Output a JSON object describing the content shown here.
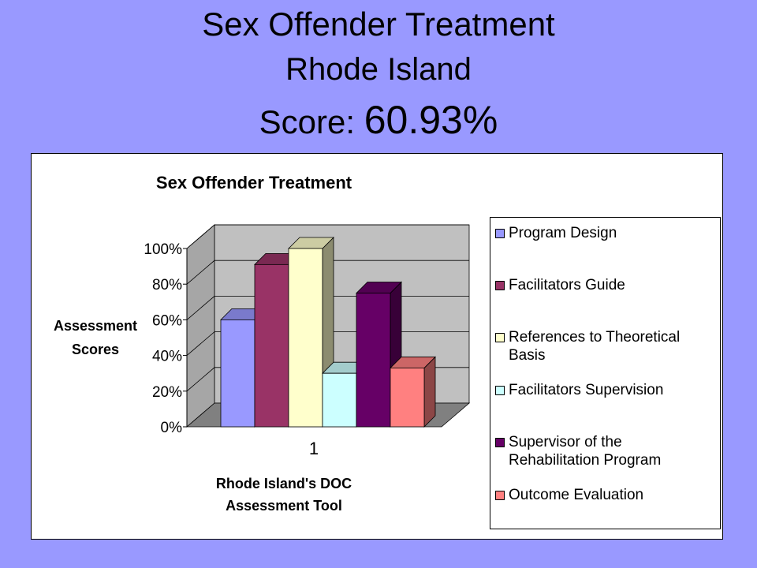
{
  "slide": {
    "title_line1": "Sex Offender Treatment",
    "title_line2": "Rhode Island",
    "score_label": "Score:",
    "score_value": "60.93%"
  },
  "chart_data": {
    "type": "bar",
    "title": "Sex Offender Treatment",
    "xlabel": "Rhode Island's DOC Assessment Tool",
    "ylabel": "Assessment Scores",
    "categories": [
      "1"
    ],
    "series": [
      {
        "name": "Program Design",
        "values": [
          60
        ],
        "color": "#9999ff"
      },
      {
        "name": "Facilitators Guide",
        "values": [
          91
        ],
        "color": "#993366"
      },
      {
        "name": "References to Theoretical Basis",
        "values": [
          100
        ],
        "color": "#ffffcc"
      },
      {
        "name": "Facilitators Supervision",
        "values": [
          30
        ],
        "color": "#ccffff"
      },
      {
        "name": "Supervisor of the Rehabilitation Program",
        "values": [
          75
        ],
        "color": "#660066"
      },
      {
        "name": "Outcome Evaluation",
        "values": [
          33
        ],
        "color": "#ff8080"
      }
    ],
    "ylim": [
      0,
      100
    ],
    "yticks": [
      "0%",
      "20%",
      "40%",
      "60%",
      "80%",
      "100%"
    ],
    "grid": true,
    "legend_position": "right",
    "three_d": true
  }
}
